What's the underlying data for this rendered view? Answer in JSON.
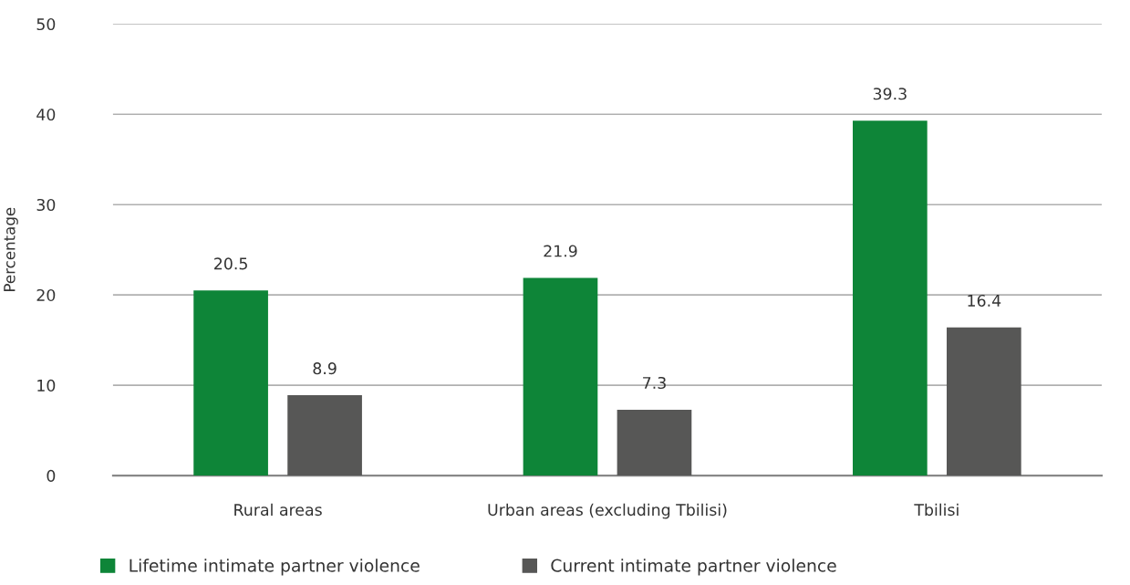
{
  "chart_data": {
    "type": "bar",
    "ylabel": "Percentage",
    "categories": [
      "Rural areas",
      "Urban areas (excluding Tbilisi)",
      "Tbilisi"
    ],
    "series": [
      {
        "name": "Lifetime intimate partner violence",
        "color": "#0e8538",
        "values": [
          20.5,
          21.9,
          39.3
        ]
      },
      {
        "name": "Current intimate partner violence",
        "color": "#575756",
        "values": [
          8.9,
          7.3,
          16.4
        ]
      }
    ],
    "ylim": [
      0,
      50
    ],
    "yticks": [
      0,
      10,
      20,
      30,
      40,
      50
    ],
    "grid": "y",
    "legend": "bottom",
    "data_labels": true
  }
}
